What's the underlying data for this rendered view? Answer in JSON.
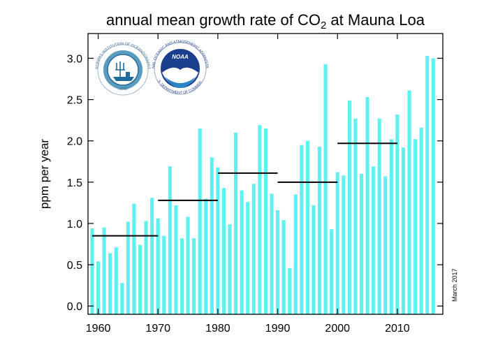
{
  "chart_data": {
    "type": "bar",
    "title_prefix": "annual mean growth rate of CO",
    "title_subscript": "2",
    "title_suffix": " at Mauna Loa",
    "ylabel": "ppm per year",
    "xlabel": "",
    "date_note": "March 2017",
    "ylim": [
      -0.1,
      3.3
    ],
    "xlim": [
      1958.3,
      2017.6
    ],
    "yticks": [
      "0.0",
      "0.5",
      "1.0",
      "1.5",
      "2.0",
      "2.5",
      "3.0"
    ],
    "ytick_values": [
      0.0,
      0.5,
      1.0,
      1.5,
      2.0,
      2.5,
      3.0
    ],
    "xticks": [
      "1960",
      "1970",
      "1980",
      "1990",
      "2000",
      "2010"
    ],
    "xtick_values": [
      1960,
      1970,
      1980,
      1990,
      2000,
      2010
    ],
    "bar_color": "#5ff0f0",
    "years": [
      1959,
      1960,
      1961,
      1962,
      1963,
      1964,
      1965,
      1966,
      1967,
      1968,
      1969,
      1970,
      1971,
      1972,
      1973,
      1974,
      1975,
      1976,
      1977,
      1978,
      1979,
      1980,
      1981,
      1982,
      1983,
      1984,
      1985,
      1986,
      1987,
      1988,
      1989,
      1990,
      1991,
      1992,
      1993,
      1994,
      1995,
      1996,
      1997,
      1998,
      1999,
      2000,
      2001,
      2002,
      2003,
      2004,
      2005,
      2006,
      2007,
      2008,
      2009,
      2010,
      2011,
      2012,
      2013,
      2014,
      2015,
      2016
    ],
    "values": [
      0.94,
      0.54,
      0.95,
      0.64,
      0.71,
      0.28,
      1.02,
      1.24,
      0.74,
      1.03,
      1.31,
      1.06,
      0.85,
      1.69,
      1.22,
      0.82,
      1.08,
      0.82,
      2.15,
      1.3,
      1.8,
      1.68,
      1.43,
      0.99,
      2.1,
      1.4,
      1.26,
      1.48,
      2.19,
      2.15,
      1.36,
      1.16,
      1.04,
      0.46,
      1.35,
      1.95,
      2.0,
      1.22,
      1.93,
      2.93,
      0.93,
      1.62,
      1.58,
      2.49,
      2.27,
      1.6,
      2.53,
      1.69,
      2.27,
      1.57,
      2.02,
      2.32,
      1.92,
      2.61,
      2.02,
      2.16,
      3.03,
      3.0
    ],
    "decade_means": [
      {
        "start": 1959,
        "end": 1970,
        "value": 0.85
      },
      {
        "start": 1970,
        "end": 1980,
        "value": 1.28
      },
      {
        "start": 1980,
        "end": 1990,
        "value": 1.61
      },
      {
        "start": 1990,
        "end": 2000,
        "value": 1.5
      },
      {
        "start": 2000,
        "end": 2010,
        "value": 1.97
      }
    ]
  },
  "logos": {
    "scripps": {
      "name": "scripps-logo",
      "text_top": "SCRIPPS INSTITUTION OF OCEANOGRAPHY",
      "text_bottom": "UCSD"
    },
    "noaa": {
      "name": "noaa-logo",
      "center_word": "NOAA",
      "text_top": "NATIONAL OCEANIC AND ATMOSPHERIC ADMINISTRATION",
      "text_bottom": "U.S. DEPARTMENT OF COMMERCE"
    }
  }
}
